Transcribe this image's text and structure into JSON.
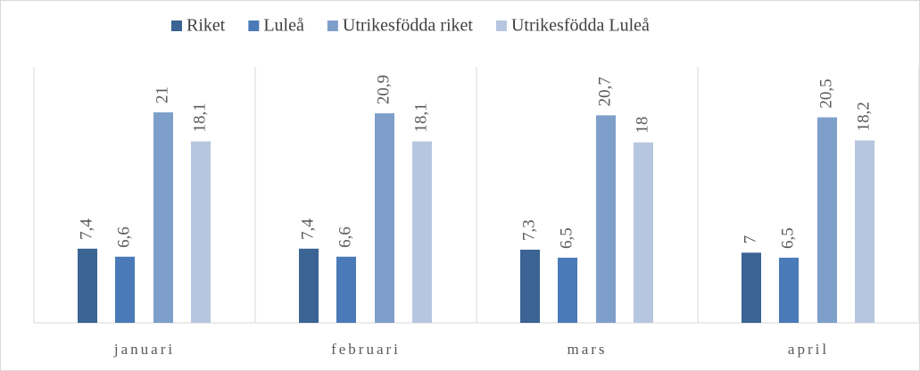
{
  "chart_data": {
    "type": "bar",
    "categories": [
      "januari",
      "februari",
      "mars",
      "april"
    ],
    "series": [
      {
        "name": "Riket",
        "color": "#3b6394",
        "values": [
          7.4,
          7.4,
          7.3,
          7
        ],
        "value_labels": [
          "7,4",
          "7,4",
          "7,3",
          "7"
        ]
      },
      {
        "name": "Luleå",
        "color": "#4a7ab7",
        "values": [
          6.6,
          6.6,
          6.5,
          6.5
        ],
        "value_labels": [
          "6,6",
          "6,6",
          "6,5",
          "6,5"
        ]
      },
      {
        "name": "Utrikesfödda riket",
        "color": "#7f9fcb",
        "values": [
          21,
          20.9,
          20.7,
          20.5
        ],
        "value_labels": [
          "21",
          "20,9",
          "20,7",
          "20,5"
        ]
      },
      {
        "name": "Utrikesfödda Luleå",
        "color": "#b7c6e0",
        "values": [
          18.1,
          18.1,
          18,
          18.2
        ],
        "value_labels": [
          "18,1",
          "18,1",
          "18",
          "18,2"
        ]
      }
    ],
    "legend": "top"
  }
}
